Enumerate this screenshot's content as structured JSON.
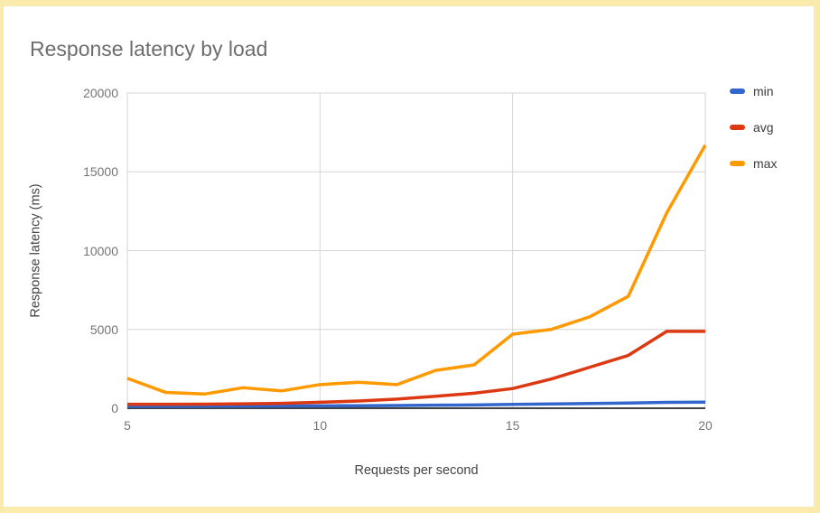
{
  "card": {
    "border_color": "#FAEBAC",
    "background_color": "#ffffff"
  },
  "chart_data": {
    "type": "line",
    "title": "Response latency by load",
    "xlabel": "Requests per second",
    "ylabel": "Response latency (ms)",
    "x": [
      5,
      6,
      7,
      8,
      9,
      10,
      11,
      12,
      13,
      14,
      15,
      16,
      17,
      18,
      19,
      20
    ],
    "series": [
      {
        "name": "min",
        "color": "#3366CC",
        "values": [
          120,
          120,
          125,
          130,
          140,
          150,
          160,
          170,
          190,
          210,
          240,
          270,
          300,
          330,
          370,
          390
        ]
      },
      {
        "name": "avg",
        "color": "#DC3912",
        "values": [
          250,
          250,
          260,
          280,
          310,
          380,
          460,
          580,
          760,
          950,
          1250,
          1850,
          2600,
          3350,
          4880,
          4880
        ]
      },
      {
        "name": "max",
        "color": "#FF9900",
        "values": [
          1900,
          1000,
          900,
          1300,
          1100,
          1500,
          1650,
          1500,
          2400,
          2750,
          4700,
          5000,
          5800,
          7100,
          12400,
          16700
        ]
      }
    ],
    "xlim": [
      5,
      20
    ],
    "ylim": [
      0,
      20000
    ],
    "x_ticks": [
      5,
      10,
      15,
      20
    ],
    "y_ticks": [
      0,
      5000,
      10000,
      15000,
      20000
    ],
    "grid": true,
    "gridline_color": "#d6d6d6",
    "baseline_color": "#424242",
    "legend_position": "right",
    "tick_label_color": "#757575",
    "title_color": "#6d6d6d"
  }
}
